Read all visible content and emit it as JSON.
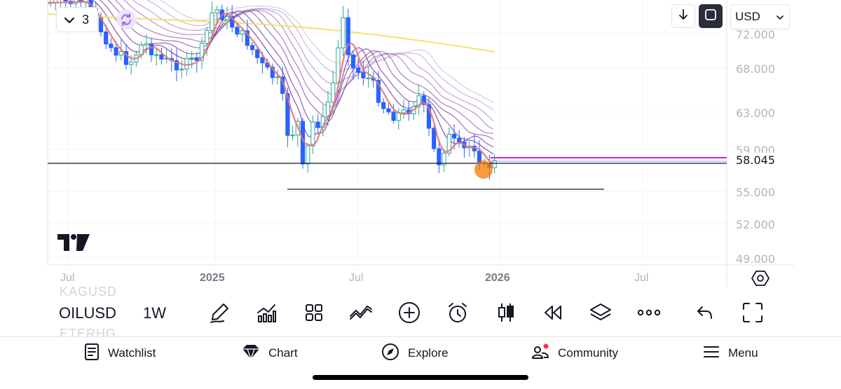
{
  "legend": {
    "count": "3"
  },
  "top_controls": {
    "currency": "USD"
  },
  "price_axis": {
    "labels": [
      "72.000",
      "68.000",
      "63.000",
      "59.000",
      "55.000",
      "52.000",
      "49.000"
    ],
    "current": "58.045"
  },
  "time_axis": {
    "labels": [
      "Jul",
      "2025",
      "Jul",
      "2026",
      "Jul"
    ]
  },
  "toolbar": {
    "faded_top": "KAGUSD",
    "faded_bottom": "ETERHG",
    "symbol": "OILUSD",
    "interval": "1W"
  },
  "tools": [
    "pen-icon",
    "indicators-icon",
    "templates-icon",
    "compare-icon",
    "add-icon",
    "alert-icon",
    "candles-icon",
    "replay-icon",
    "layers-icon",
    "more-icon",
    "undo-icon",
    "fullscreen-icon"
  ],
  "nav": {
    "watchlist": "Watchlist",
    "chart": "Chart",
    "explore": "Explore",
    "community": "Community",
    "menu": "Menu"
  },
  "colors": {
    "up": "#26a69a",
    "down": "#2962ff",
    "ma_short": "#e57373",
    "ma_long": "#f4e26b",
    "ribbon": "#7b3fa0",
    "horizontal": "#c026d3",
    "marker": "#f57c00"
  }
}
